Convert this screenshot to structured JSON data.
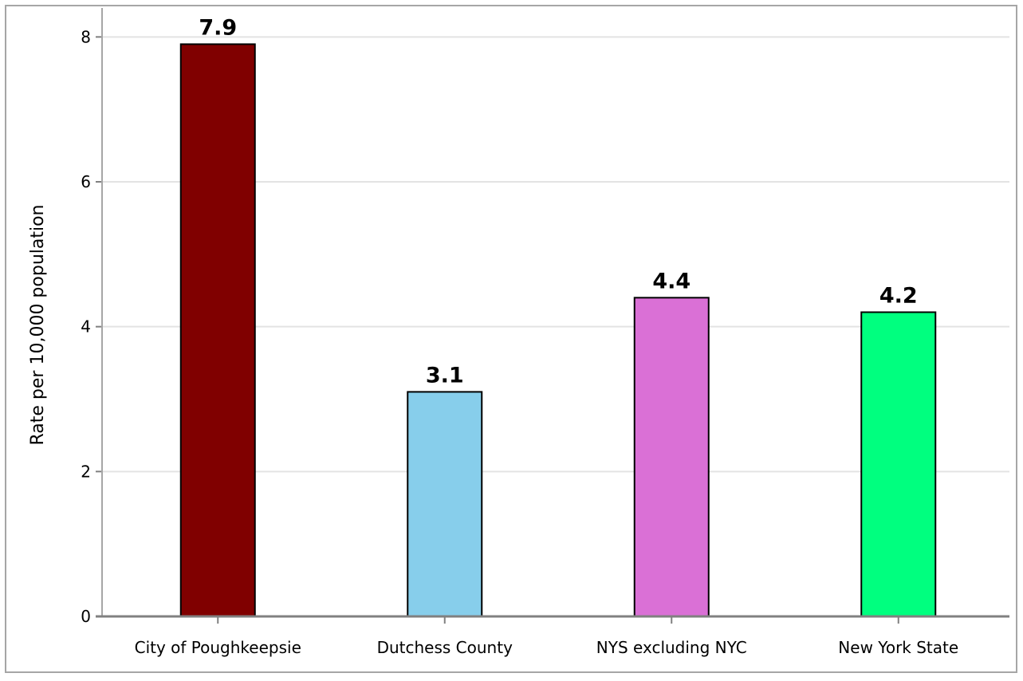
{
  "chart_data": {
    "type": "bar",
    "title": "",
    "xlabel": "",
    "ylabel": "Rate per 10,000 population",
    "categories": [
      "City of Poughkeepsie",
      "Dutchess County",
      "NYS excluding NYC",
      "New York State"
    ],
    "values": [
      7.9,
      3.1,
      4.4,
      4.2
    ],
    "value_labels": [
      "7.9",
      "3.1",
      "4.4",
      "4.2"
    ],
    "colors": [
      "#800000",
      "#87ceeb",
      "#da70d6",
      "#00ff7f"
    ],
    "ylim": [
      0,
      8.4
    ],
    "yticks": [
      0,
      2,
      4,
      6,
      8
    ],
    "ytick_labels": [
      "0",
      "2",
      "4",
      "6",
      "8"
    ],
    "grid": true,
    "legend": "none"
  }
}
